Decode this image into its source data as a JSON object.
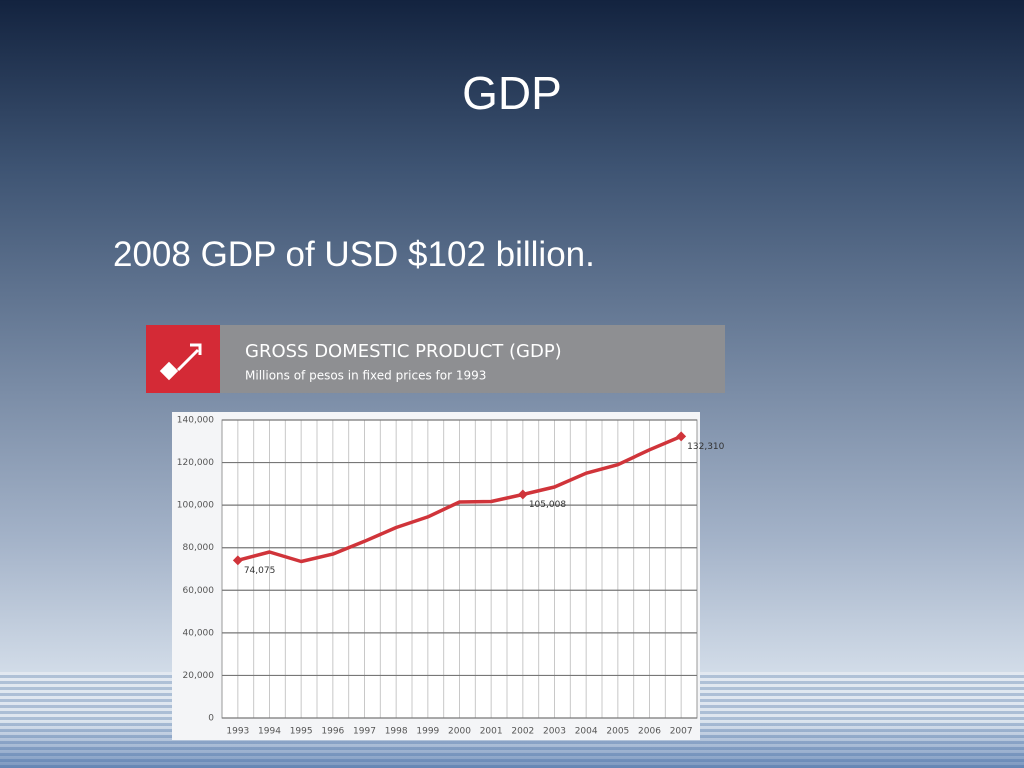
{
  "slide": {
    "title": "GDP",
    "bullet": "2008 GDP of USD $102 billion."
  },
  "chart_data": {
    "type": "line",
    "title": "GROSS DOMESTIC PRODUCT (GDP)",
    "subtitle": "Millions of pesos in fixed prices for 1993",
    "categories": [
      "1993",
      "1994",
      "1995",
      "1996",
      "1997",
      "1998",
      "1999",
      "2000",
      "2001",
      "2002",
      "2003",
      "2004",
      "2005",
      "2006",
      "2007"
    ],
    "series": [
      {
        "name": "GDP",
        "color": "#d0343a",
        "values": [
          74075,
          78000,
          73500,
          77000,
          83000,
          89500,
          94500,
          101500,
          101700,
          105008,
          108500,
          115000,
          119000,
          126000,
          132310
        ],
        "value_labels": [
          "74,075",
          null,
          null,
          null,
          null,
          null,
          null,
          null,
          null,
          "105,008",
          null,
          null,
          null,
          null,
          "132,310"
        ]
      }
    ],
    "ylim": [
      0,
      140000
    ],
    "yticks": [
      0,
      {
        "value": 20000,
        "label": "20,000"
      },
      {
        "value": 40000,
        "label": "40,000"
      },
      {
        "value": 60000,
        "label": "60,000"
      },
      {
        "value": 80000,
        "label": "80,000"
      },
      {
        "value": 100000,
        "label": "100,000"
      },
      {
        "value": 120000,
        "label": "120,000"
      },
      {
        "value": 140000,
        "label": "140,000"
      }
    ],
    "grid": true
  }
}
